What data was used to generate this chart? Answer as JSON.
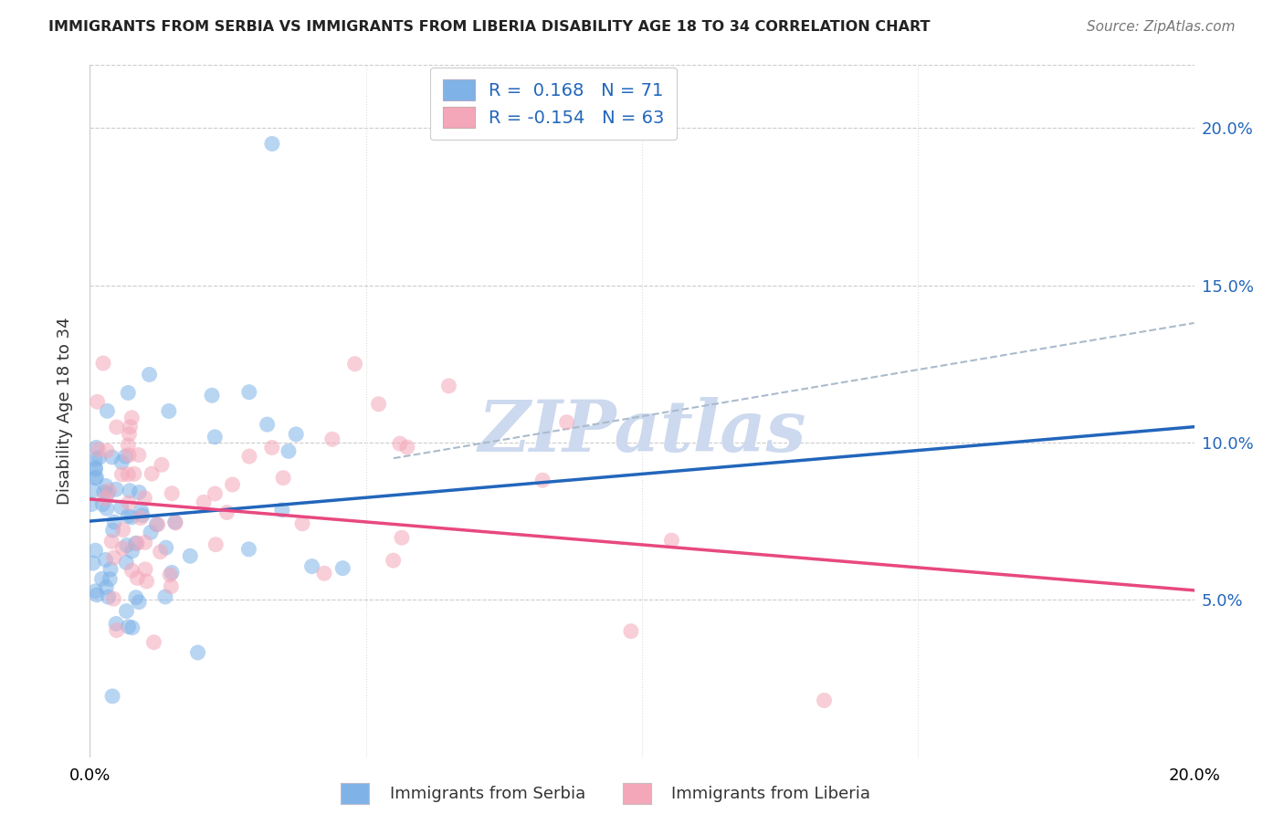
{
  "title": "IMMIGRANTS FROM SERBIA VS IMMIGRANTS FROM LIBERIA DISABILITY AGE 18 TO 34 CORRELATION CHART",
  "source": "Source: ZipAtlas.com",
  "ylabel": "Disability Age 18 to 34",
  "xlim": [
    0.0,
    0.2
  ],
  "ylim": [
    0.0,
    0.22
  ],
  "ytick_values": [
    0.05,
    0.1,
    0.15,
    0.2
  ],
  "r_serbia": 0.168,
  "n_serbia": 71,
  "r_liberia": -0.154,
  "n_liberia": 63,
  "serbia_color": "#7fb3e8",
  "liberia_color": "#f4a7b9",
  "serbia_line_color": "#2266bb",
  "liberia_line_color": "#e84880",
  "trend_line_color": "#aabbcc",
  "watermark": "ZIPatlas",
  "watermark_color": "#ccd9ee",
  "serbia_line_x0": 0.0,
  "serbia_line_y0": 0.075,
  "serbia_line_x1": 0.2,
  "serbia_line_y1": 0.105,
  "liberia_line_x0": 0.0,
  "liberia_line_y0": 0.082,
  "liberia_line_x1": 0.2,
  "liberia_line_y1": 0.053,
  "dash_line_x0": 0.055,
  "dash_line_y0": 0.095,
  "dash_line_x1": 0.2,
  "dash_line_y1": 0.138
}
